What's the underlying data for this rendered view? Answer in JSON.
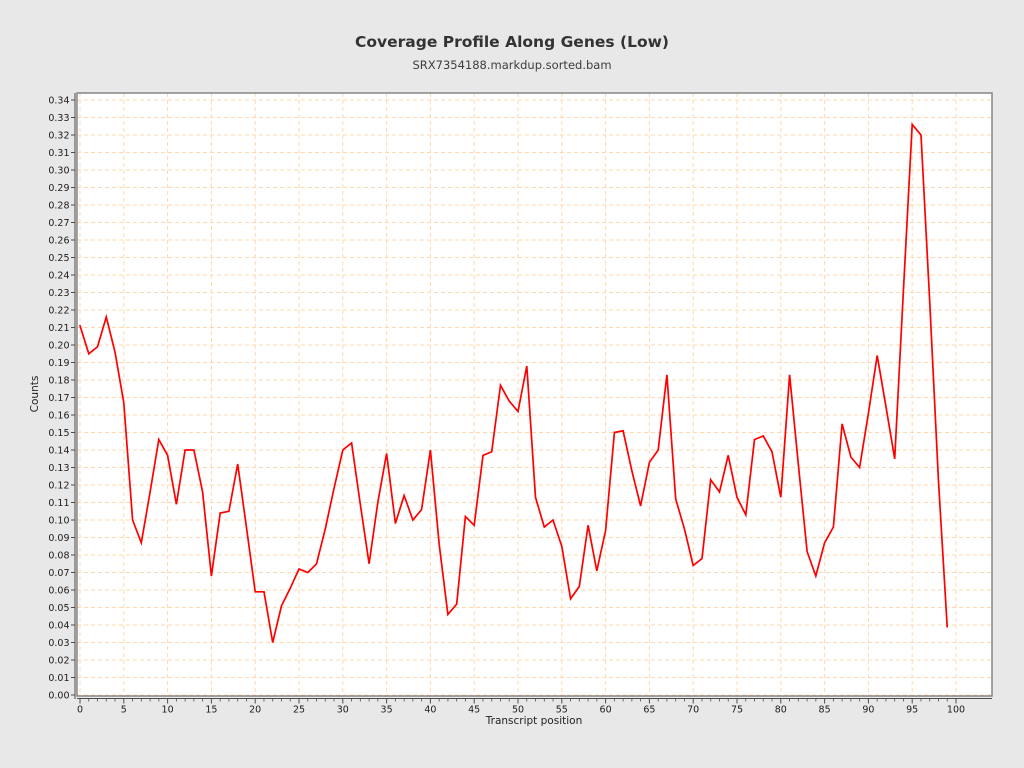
{
  "page": {
    "title": "Coverage Profile Along Genes (Low)",
    "subtitle": "SRX7354188.markdup.sorted.bam"
  },
  "chart_data": {
    "type": "line",
    "title": "Coverage Profile Along Genes (Low)",
    "subtitle": "SRX7354188.markdup.sorted.bam",
    "xlabel": "Transcript position",
    "ylabel": "Counts",
    "legend": "none",
    "grid": true,
    "grid_style": "dashed",
    "x_start": 0,
    "x_step": 1,
    "x_axis_min": 0,
    "x_axis_max": 100,
    "x_major_tick_step": 5,
    "x_minor_tick_step": 1,
    "y_axis_min": 0.0,
    "y_axis_max": 0.34,
    "y_tick_step": 0.01,
    "line_color": "#ff0000",
    "grid_color": "#ffd8ad",
    "background_color": "#e8e8e8",
    "plot_background_color": "#ffffff",
    "frame_color": "#858585",
    "axis_color": "#4d4d4d",
    "tick_label_color": "#1c1c1c",
    "values": [
      0.211,
      0.195,
      0.199,
      0.216,
      0.196,
      0.167,
      0.1,
      0.087,
      0.116,
      0.146,
      0.137,
      0.109,
      0.14,
      0.14,
      0.116,
      0.068,
      0.104,
      0.105,
      0.132,
      0.096,
      0.059,
      0.059,
      0.03,
      0.051,
      0.061,
      0.072,
      0.07,
      0.075,
      0.095,
      0.118,
      0.14,
      0.144,
      0.109,
      0.075,
      0.11,
      0.138,
      0.098,
      0.114,
      0.1,
      0.106,
      0.14,
      0.086,
      0.046,
      0.052,
      0.102,
      0.097,
      0.137,
      0.139,
      0.177,
      0.168,
      0.162,
      0.188,
      0.113,
      0.096,
      0.1,
      0.085,
      0.055,
      0.062,
      0.097,
      0.071,
      0.094,
      0.15,
      0.151,
      0.128,
      0.108,
      0.133,
      0.14,
      0.183,
      0.112,
      0.095,
      0.074,
      0.078,
      0.123,
      0.116,
      0.137,
      0.113,
      0.103,
      0.146,
      0.148,
      0.139,
      0.113,
      0.183,
      0.132,
      0.082,
      0.068,
      0.087,
      0.096,
      0.155,
      0.136,
      0.13,
      0.161,
      0.194,
      0.165,
      0.135,
      0.231,
      0.326,
      0.32,
      0.225,
      0.122,
      0.039
    ]
  }
}
